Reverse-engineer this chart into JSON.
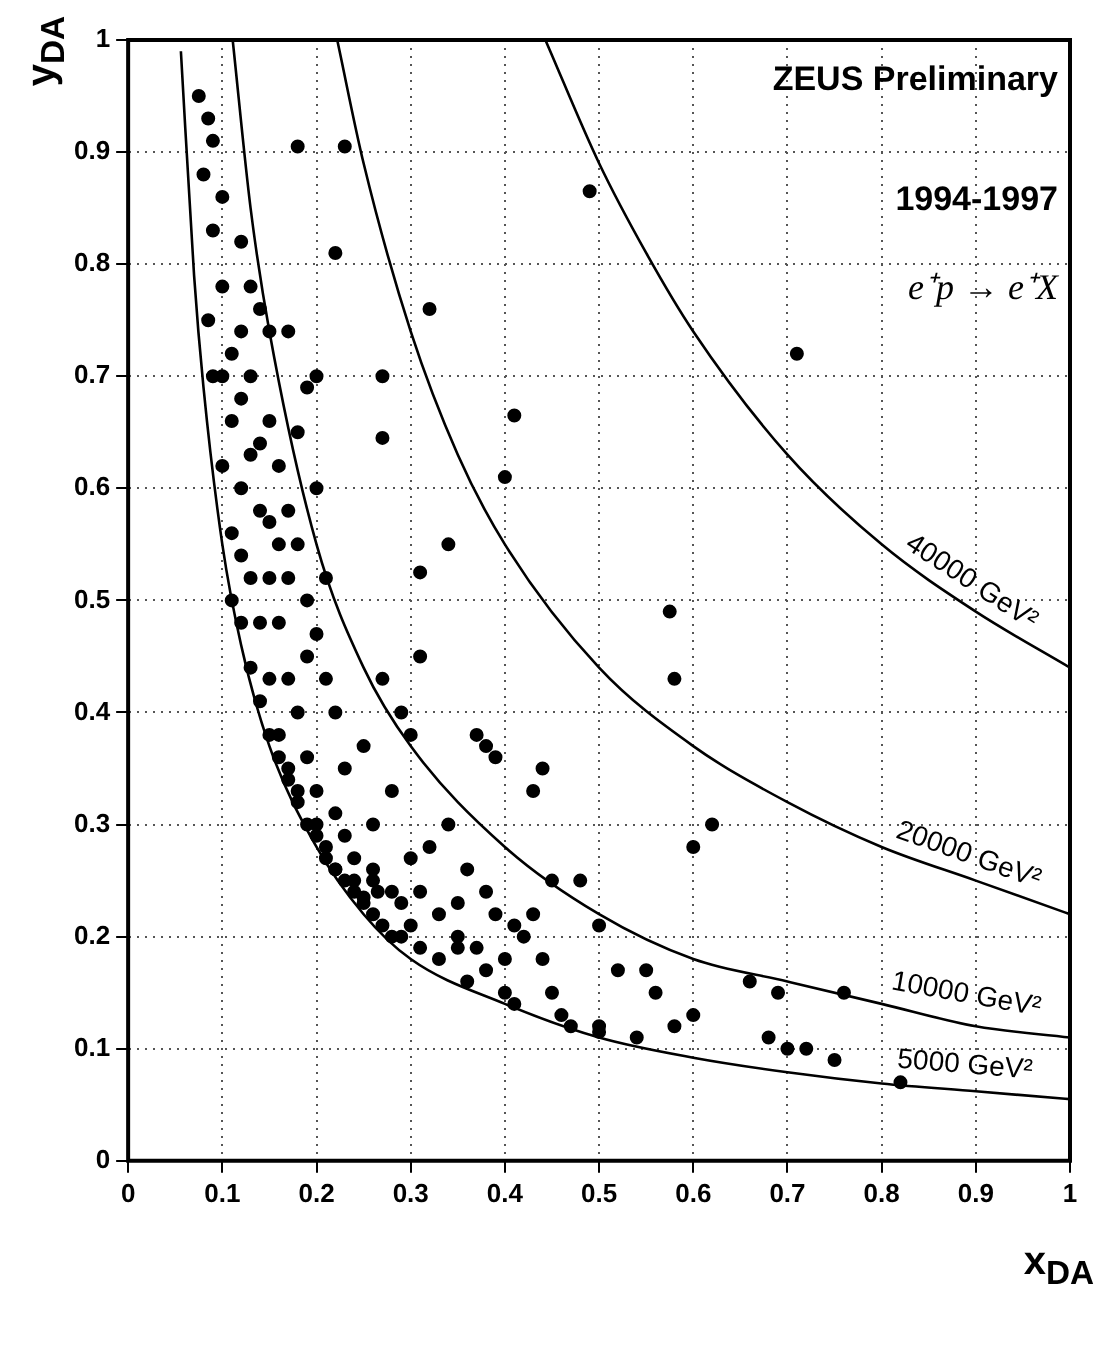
{
  "chart_data": {
    "type": "scatter",
    "title": "ZEUS Preliminary",
    "annotations": [
      "1994-1997",
      "e⁺p → e⁺X"
    ],
    "xlabel": "x$_{DA}$",
    "ylabel": "y$_{DA}$",
    "xlim": [
      0,
      1
    ],
    "ylim": [
      0,
      1
    ],
    "xticks": [
      0,
      0.1,
      0.2,
      0.3,
      0.4,
      0.5,
      0.6,
      0.7,
      0.8,
      0.9,
      1
    ],
    "yticks": [
      0,
      0.1,
      0.2,
      0.3,
      0.4,
      0.5,
      0.6,
      0.7,
      0.8,
      0.9,
      1
    ],
    "grid": true,
    "legend": false,
    "series": [
      {
        "marker": "circle",
        "color": "#000000",
        "x": [
          0.49,
          0.71,
          0.41,
          0.4,
          0.32,
          0.23,
          0.18,
          0.22,
          0.27,
          0.27,
          0.31,
          0.34,
          0.575,
          0.58,
          0.6,
          0.62,
          0.43,
          0.44,
          0.38,
          0.37,
          0.39,
          0.45,
          0.48,
          0.43,
          0.5,
          0.52,
          0.55,
          0.56,
          0.6,
          0.66,
          0.69,
          0.72,
          0.75,
          0.68,
          0.7,
          0.82,
          0.76,
          0.58,
          0.54,
          0.5,
          0.5,
          0.47,
          0.46,
          0.45,
          0.41,
          0.4,
          0.38,
          0.36,
          0.35,
          0.33,
          0.31,
          0.3,
          0.29,
          0.265,
          0.26,
          0.25,
          0.24,
          0.23,
          0.22,
          0.21,
          0.2,
          0.24,
          0.26,
          0.28,
          0.3,
          0.32,
          0.34,
          0.36,
          0.35,
          0.38,
          0.39,
          0.42,
          0.26,
          0.28,
          0.25,
          0.27,
          0.29,
          0.31,
          0.3,
          0.23,
          0.22,
          0.21,
          0.2,
          0.19,
          0.18,
          0.17,
          0.16,
          0.18,
          0.2,
          0.21,
          0.19,
          0.18,
          0.17,
          0.16,
          0.15,
          0.14,
          0.13,
          0.12,
          0.11,
          0.1,
          0.09,
          0.08,
          0.075,
          0.085,
          0.09,
          0.1,
          0.12,
          0.13,
          0.14,
          0.15,
          0.17,
          0.19,
          0.2,
          0.15,
          0.12,
          0.11,
          0.1,
          0.09,
          0.085,
          0.11,
          0.12,
          0.13,
          0.14,
          0.15,
          0.16,
          0.17,
          0.18,
          0.19,
          0.2,
          0.21,
          0.22,
          0.16,
          0.15,
          0.14,
          0.13,
          0.17,
          0.18,
          0.19,
          0.2,
          0.22,
          0.23,
          0.24,
          0.25,
          0.26,
          0.27,
          0.28,
          0.29,
          0.31,
          0.33,
          0.35,
          0.37,
          0.4,
          0.41,
          0.44,
          0.11,
          0.1,
          0.12,
          0.13,
          0.14,
          0.16,
          0.17,
          0.15,
          0.12
        ],
        "values": [
          0.865,
          0.72,
          0.665,
          0.61,
          0.76,
          0.905,
          0.905,
          0.81,
          0.7,
          0.645,
          0.525,
          0.55,
          0.49,
          0.43,
          0.28,
          0.3,
          0.33,
          0.35,
          0.37,
          0.38,
          0.36,
          0.25,
          0.25,
          0.22,
          0.21,
          0.17,
          0.17,
          0.15,
          0.13,
          0.16,
          0.15,
          0.1,
          0.09,
          0.11,
          0.1,
          0.07,
          0.15,
          0.12,
          0.11,
          0.12,
          0.115,
          0.12,
          0.13,
          0.15,
          0.14,
          0.15,
          0.17,
          0.16,
          0.19,
          0.18,
          0.19,
          0.21,
          0.2,
          0.24,
          0.25,
          0.235,
          0.24,
          0.25,
          0.26,
          0.28,
          0.3,
          0.25,
          0.26,
          0.24,
          0.27,
          0.28,
          0.3,
          0.26,
          0.23,
          0.24,
          0.22,
          0.2,
          0.3,
          0.33,
          0.37,
          0.43,
          0.4,
          0.45,
          0.38,
          0.35,
          0.4,
          0.43,
          0.47,
          0.5,
          0.55,
          0.58,
          0.62,
          0.65,
          0.6,
          0.52,
          0.45,
          0.4,
          0.43,
          0.48,
          0.52,
          0.58,
          0.63,
          0.68,
          0.72,
          0.78,
          0.83,
          0.88,
          0.95,
          0.93,
          0.91,
          0.86,
          0.82,
          0.78,
          0.76,
          0.74,
          0.74,
          0.69,
          0.7,
          0.66,
          0.6,
          0.56,
          0.62,
          0.7,
          0.75,
          0.5,
          0.48,
          0.44,
          0.41,
          0.38,
          0.36,
          0.34,
          0.32,
          0.3,
          0.29,
          0.27,
          0.26,
          0.38,
          0.43,
          0.48,
          0.52,
          0.35,
          0.33,
          0.36,
          0.33,
          0.31,
          0.29,
          0.27,
          0.23,
          0.22,
          0.21,
          0.2,
          0.23,
          0.24,
          0.22,
          0.2,
          0.19,
          0.18,
          0.21,
          0.18,
          0.66,
          0.7,
          0.74,
          0.7,
          0.64,
          0.55,
          0.52,
          0.57,
          0.54
        ]
      },
      {
        "type": "line",
        "marker": "none",
        "name": "5000 GeV²",
        "color": "#000000",
        "x": [
          0.056,
          0.07,
          0.08,
          0.1,
          0.12,
          0.15,
          0.2,
          0.25,
          0.3,
          0.4,
          0.5,
          0.6,
          0.7,
          0.8,
          0.9,
          1
        ],
        "values": [
          0.99,
          0.79,
          0.69,
          0.55,
          0.46,
          0.37,
          0.28,
          0.22,
          0.18,
          0.14,
          0.11,
          0.092,
          0.079,
          0.069,
          0.062,
          0.055
        ]
      },
      {
        "type": "line",
        "marker": "none",
        "name": "10000 GeV²",
        "color": "#000000",
        "x": [
          0.111,
          0.13,
          0.15,
          0.2,
          0.25,
          0.3,
          0.4,
          0.5,
          0.6,
          0.7,
          0.8,
          0.9,
          1
        ],
        "values": [
          1,
          0.85,
          0.74,
          0.55,
          0.44,
          0.37,
          0.28,
          0.22,
          0.18,
          0.16,
          0.14,
          0.12,
          0.11
        ]
      },
      {
        "type": "line",
        "marker": "none",
        "name": "20000 GeV²",
        "color": "#000000",
        "x": [
          0.222,
          0.25,
          0.3,
          0.35,
          0.4,
          0.5,
          0.6,
          0.7,
          0.8,
          0.9,
          1
        ],
        "values": [
          1,
          0.89,
          0.74,
          0.63,
          0.55,
          0.44,
          0.37,
          0.32,
          0.28,
          0.25,
          0.22
        ]
      },
      {
        "type": "line",
        "marker": "none",
        "name": "40000 GeV²",
        "color": "#000000",
        "x": [
          0.443,
          0.5,
          0.55,
          0.6,
          0.7,
          0.8,
          0.9,
          1
        ],
        "values": [
          1,
          0.89,
          0.81,
          0.74,
          0.63,
          0.55,
          0.49,
          0.44
        ]
      }
    ]
  }
}
